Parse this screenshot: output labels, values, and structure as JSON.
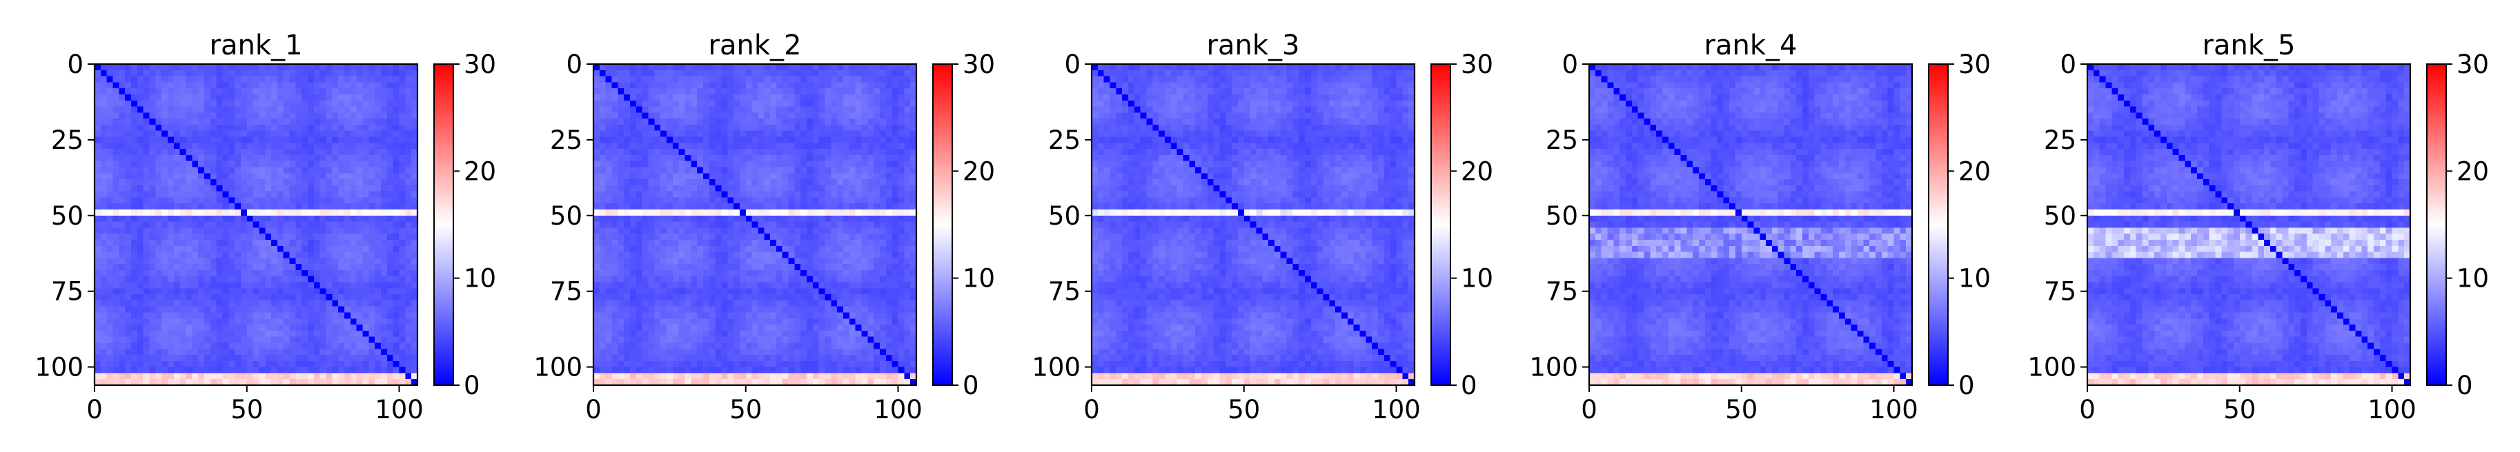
{
  "chart_data": [
    {
      "type": "heatmap",
      "title": "rank_1",
      "xlim": [
        0,
        106
      ],
      "ylim": [
        106,
        0
      ],
      "xticks": [
        0,
        50,
        100
      ],
      "yticks": [
        0,
        25,
        50,
        75,
        100
      ],
      "colorbar": {
        "min": 0,
        "max": 30,
        "ticks": [
          0,
          10,
          20,
          30
        ],
        "colors": [
          "#0000ff",
          "#ffffff",
          "#ff0000"
        ]
      },
      "features": {
        "base": 4,
        "diagonal": 0,
        "bright_rows": [
          {
            "center": 49,
            "width": 1.6,
            "value": 14
          },
          {
            "center": 104,
            "width": 1.5,
            "value": 18
          }
        ],
        "mid_band": null
      }
    },
    {
      "type": "heatmap",
      "title": "rank_2",
      "xlim": [
        0,
        106
      ],
      "ylim": [
        106,
        0
      ],
      "xticks": [
        0,
        50,
        100
      ],
      "yticks": [
        0,
        25,
        50,
        75,
        100
      ],
      "colorbar": {
        "min": 0,
        "max": 30,
        "ticks": [
          0,
          10,
          20,
          30
        ],
        "colors": [
          "#0000ff",
          "#ffffff",
          "#ff0000"
        ]
      },
      "features": {
        "base": 4,
        "diagonal": 0,
        "bright_rows": [
          {
            "center": 49,
            "width": 1.6,
            "value": 14
          },
          {
            "center": 104,
            "width": 1.5,
            "value": 18
          }
        ],
        "mid_band": null
      }
    },
    {
      "type": "heatmap",
      "title": "rank_3",
      "xlim": [
        0,
        106
      ],
      "ylim": [
        106,
        0
      ],
      "xticks": [
        0,
        50,
        100
      ],
      "yticks": [
        0,
        25,
        50,
        75,
        100
      ],
      "colorbar": {
        "min": 0,
        "max": 30,
        "ticks": [
          0,
          10,
          20,
          30
        ],
        "colors": [
          "#0000ff",
          "#ffffff",
          "#ff0000"
        ]
      },
      "features": {
        "base": 4,
        "diagonal": 0,
        "bright_rows": [
          {
            "center": 49,
            "width": 1.6,
            "value": 13
          },
          {
            "center": 104,
            "width": 1.5,
            "value": 18
          }
        ],
        "mid_band": null
      }
    },
    {
      "type": "heatmap",
      "title": "rank_4",
      "xlim": [
        0,
        106
      ],
      "ylim": [
        106,
        0
      ],
      "xticks": [
        0,
        50,
        100
      ],
      "yticks": [
        0,
        25,
        50,
        75,
        100
      ],
      "colorbar": {
        "min": 0,
        "max": 30,
        "ticks": [
          0,
          10,
          20,
          30
        ],
        "colors": [
          "#0000ff",
          "#ffffff",
          "#ff0000"
        ]
      },
      "features": {
        "base": 4,
        "diagonal": 0,
        "bright_rows": [
          {
            "center": 49,
            "width": 1.6,
            "value": 14
          },
          {
            "center": 104,
            "width": 1.5,
            "value": 18
          }
        ],
        "mid_band": {
          "from": 55,
          "to": 63,
          "value": 9
        }
      }
    },
    {
      "type": "heatmap",
      "title": "rank_5",
      "xlim": [
        0,
        106
      ],
      "ylim": [
        106,
        0
      ],
      "xticks": [
        0,
        50,
        100
      ],
      "yticks": [
        0,
        25,
        50,
        75,
        100
      ],
      "colorbar": {
        "min": 0,
        "max": 30,
        "ticks": [
          0,
          10,
          20,
          30
        ],
        "colors": [
          "#0000ff",
          "#ffffff",
          "#ff0000"
        ]
      },
      "features": {
        "base": 4,
        "diagonal": 0,
        "bright_rows": [
          {
            "center": 49,
            "width": 1.6,
            "value": 14
          },
          {
            "center": 104,
            "width": 1.5,
            "value": 18
          }
        ],
        "mid_band": {
          "from": 55,
          "to": 63,
          "value": 12
        }
      }
    }
  ]
}
